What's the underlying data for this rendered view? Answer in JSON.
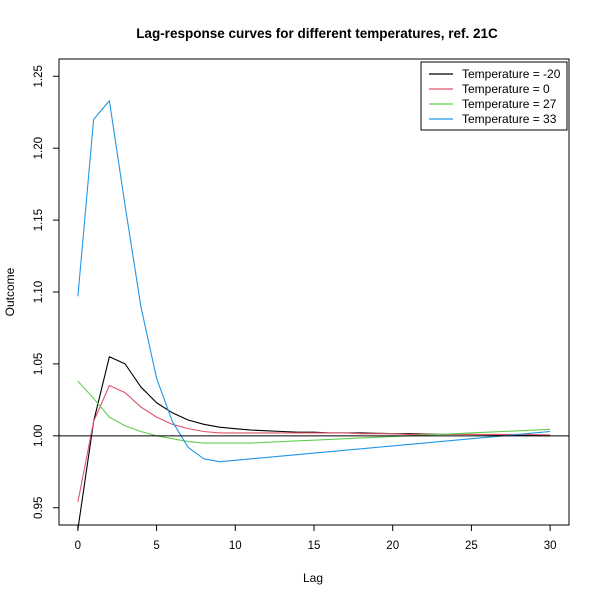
{
  "chart_data": {
    "type": "line",
    "title": "Lag-response curves for different temperatures, ref. 21C",
    "xlabel": "Lag",
    "ylabel": "Outcome",
    "xlim": [
      -1.2,
      31.2
    ],
    "ylim": [
      0.938,
      1.262
    ],
    "x_ticks": [
      0,
      5,
      10,
      15,
      20,
      25,
      30
    ],
    "y_ticks": [
      0.95,
      1.0,
      1.05,
      1.1,
      1.15,
      1.2,
      1.25
    ],
    "y_tick_labels": [
      "0.95",
      "1.00",
      "1.05",
      "1.10",
      "1.15",
      "1.20",
      "1.25"
    ],
    "reference_line": 1.0,
    "grid": false,
    "legend_position": "top-right",
    "x": [
      0,
      1,
      2,
      3,
      4,
      5,
      6,
      7,
      8,
      9,
      10,
      11,
      12,
      13,
      14,
      15,
      16,
      17,
      18,
      19,
      20,
      21,
      22,
      23,
      24,
      25,
      26,
      27,
      28,
      29,
      30
    ],
    "series": [
      {
        "name": "Temperature = -20",
        "color": "#000000",
        "values": [
          0.935,
          1.01,
          1.055,
          1.05,
          1.034,
          1.023,
          1.016,
          1.011,
          1.008,
          1.006,
          1.005,
          1.004,
          1.0035,
          1.003,
          1.0025,
          1.0025,
          1.002,
          1.002,
          1.002,
          1.0018,
          1.0015,
          1.0015,
          1.0012,
          1.001,
          1.001,
          1.001,
          1.0008,
          1.0007,
          1.0005,
          1.0003,
          1.0
        ]
      },
      {
        "name": "Temperature = 0",
        "color": "#DF536B",
        "values": [
          0.954,
          1.01,
          1.035,
          1.03,
          1.02,
          1.013,
          1.008,
          1.005,
          1.003,
          1.002,
          1.002,
          1.002,
          1.002,
          1.002,
          1.002,
          1.002,
          1.002,
          1.002,
          1.0015,
          1.0015,
          1.0015,
          1.001,
          1.001,
          1.001,
          1.001,
          1.001,
          1.001,
          1.001,
          1.001,
          1.0008,
          1.0006
        ]
      },
      {
        "name": "Temperature = 27",
        "color": "#61D04F",
        "values": [
          1.038,
          1.026,
          1.013,
          1.007,
          1.003,
          1.0,
          0.998,
          0.996,
          0.995,
          0.995,
          0.995,
          0.995,
          0.9955,
          0.996,
          0.9965,
          0.997,
          0.9975,
          0.998,
          0.9985,
          0.999,
          0.9995,
          1.0,
          1.0005,
          1.001,
          1.0015,
          1.002,
          1.0025,
          1.003,
          1.0035,
          1.004,
          1.0045
        ]
      },
      {
        "name": "Temperature = 33",
        "color": "#2297E6",
        "values": [
          1.097,
          1.22,
          1.233,
          1.16,
          1.09,
          1.04,
          1.01,
          0.992,
          0.984,
          0.982,
          0.983,
          0.984,
          0.985,
          0.986,
          0.987,
          0.988,
          0.989,
          0.99,
          0.991,
          0.992,
          0.993,
          0.994,
          0.995,
          0.996,
          0.997,
          0.998,
          0.999,
          1.0,
          1.001,
          1.002,
          1.003
        ]
      }
    ]
  }
}
